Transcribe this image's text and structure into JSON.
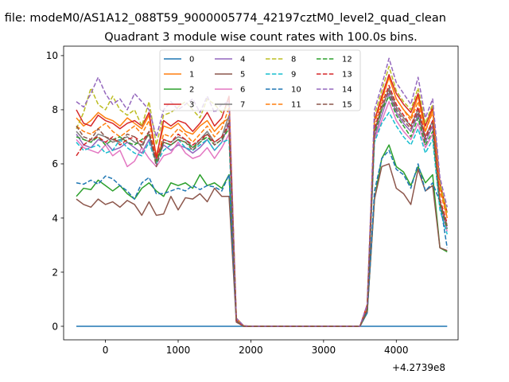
{
  "chart_data": {
    "type": "line",
    "suptitle": "n file: modeM0/AS1A12_088T59_9000005774_42197cztM0_level2_quad_clean",
    "title": "Quadrant 3 module wise count rates with 100.0s bins.",
    "xlabel": "",
    "ylabel": "",
    "x_offset_label": "+4.2739e8",
    "xlim": [
      -575,
      4850
    ],
    "ylim": [
      -0.5,
      10.35
    ],
    "xticks": [
      0,
      1000,
      2000,
      3000,
      4000
    ],
    "xtick_labels": [
      "0",
      "1000",
      "2000",
      "3000",
      "4000"
    ],
    "yticks": [
      0,
      2,
      4,
      6,
      8,
      10
    ],
    "ytick_labels": [
      "0",
      "2",
      "4",
      "6",
      "8",
      "10"
    ],
    "legend_placement": "top-center",
    "legend_columns": 4,
    "x": [
      -400,
      -300,
      -200,
      -100,
      0,
      100,
      200,
      300,
      400,
      500,
      600,
      700,
      800,
      900,
      1000,
      1100,
      1200,
      1300,
      1400,
      1500,
      1600,
      1700,
      1800,
      1900,
      2000,
      2100,
      2200,
      2300,
      2400,
      2500,
      2600,
      2700,
      2800,
      2900,
      3000,
      3100,
      3200,
      3300,
      3400,
      3500,
      3600,
      3700,
      3800,
      3900,
      4000,
      4100,
      4200,
      4300,
      4400,
      4500,
      4600,
      4700
    ],
    "series": [
      {
        "name": "0",
        "color": "#1f77b4",
        "dashed": false,
        "values": [
          0.0,
          0.0,
          0.0,
          0.0,
          0.0,
          0.0,
          0.0,
          0.0,
          0.0,
          0.0,
          0.0,
          0.0,
          0.0,
          0.0,
          0.0,
          0.0,
          0.0,
          0.0,
          0.0,
          0.0,
          0.0,
          0.0,
          0.0,
          0.0,
          0.0,
          0.0,
          0.0,
          0.0,
          0.0,
          0.0,
          0.0,
          0.0,
          0.0,
          0.0,
          0.0,
          0.0,
          0.0,
          0.0,
          0.0,
          0.0,
          0.0,
          0.0,
          0.0,
          0.0,
          0.0,
          0.0,
          0.0,
          0.0,
          0.0,
          0.0,
          0.0,
          0.0
        ]
      },
      {
        "name": "1",
        "color": "#ff7f0e",
        "dashed": false,
        "values": [
          7.7,
          7.4,
          7.6,
          7.9,
          7.7,
          7.6,
          7.4,
          7.7,
          7.5,
          7.3,
          7.8,
          6.3,
          7.4,
          7.3,
          7.5,
          7.2,
          7.1,
          7.4,
          7.6,
          7.2,
          7.5,
          7.7,
          0.3,
          0.02,
          0.0,
          0.0,
          0.0,
          0.0,
          0.0,
          0.0,
          0.0,
          0.0,
          0.0,
          0.0,
          0.0,
          0.0,
          0.0,
          0.0,
          0.0,
          0.0,
          0.7,
          7.6,
          8.4,
          9.2,
          8.4,
          8.0,
          7.7,
          8.5,
          7.2,
          8.0,
          5.2,
          4.0
        ]
      },
      {
        "name": "2",
        "color": "#2ca02c",
        "dashed": false,
        "values": [
          4.8,
          5.1,
          5.05,
          5.4,
          5.2,
          5.0,
          5.2,
          4.9,
          4.7,
          5.1,
          5.3,
          5.0,
          4.8,
          5.3,
          5.2,
          5.3,
          5.1,
          5.6,
          5.2,
          5.3,
          5.1,
          5.6,
          0.2,
          0.0,
          0.0,
          0.0,
          0.0,
          0.0,
          0.0,
          0.0,
          0.0,
          0.0,
          0.0,
          0.0,
          0.0,
          0.0,
          0.0,
          0.0,
          0.0,
          0.0,
          0.5,
          4.7,
          6.2,
          6.7,
          5.9,
          5.7,
          5.2,
          5.9,
          5.3,
          5.6,
          2.9,
          2.75
        ]
      },
      {
        "name": "3",
        "color": "#d62728",
        "dashed": false,
        "values": [
          8.0,
          7.5,
          7.4,
          7.8,
          7.6,
          7.5,
          7.3,
          7.5,
          7.6,
          7.4,
          7.9,
          6.2,
          7.6,
          7.4,
          7.6,
          7.5,
          7.2,
          7.5,
          7.9,
          7.4,
          7.7,
          8.5,
          0.25,
          0.02,
          0.0,
          0.0,
          0.0,
          0.0,
          0.0,
          0.0,
          0.0,
          0.0,
          0.0,
          0.0,
          0.0,
          0.0,
          0.0,
          0.0,
          0.0,
          0.0,
          0.8,
          7.6,
          8.5,
          9.3,
          8.6,
          8.2,
          7.9,
          8.6,
          7.4,
          8.1,
          5.3,
          4.2
        ]
      },
      {
        "name": "4",
        "color": "#9467bd",
        "dashed": false,
        "values": [
          7.1,
          6.7,
          6.6,
          6.9,
          6.8,
          6.5,
          6.6,
          6.8,
          6.6,
          6.4,
          6.9,
          6.1,
          6.7,
          6.5,
          6.7,
          6.6,
          6.4,
          6.6,
          6.9,
          6.5,
          6.8,
          7.5,
          0.25,
          0.0,
          0.0,
          0.0,
          0.0,
          0.0,
          0.0,
          0.0,
          0.0,
          0.0,
          0.0,
          0.0,
          0.0,
          0.0,
          0.0,
          0.0,
          0.0,
          0.0,
          0.6,
          7.0,
          7.8,
          8.6,
          7.9,
          7.5,
          7.2,
          7.8,
          6.8,
          7.4,
          4.5,
          3.6
        ]
      },
      {
        "name": "5",
        "color": "#8c564b",
        "dashed": false,
        "values": [
          4.7,
          4.5,
          4.4,
          4.7,
          4.5,
          4.6,
          4.4,
          4.65,
          4.5,
          4.1,
          4.6,
          4.1,
          4.15,
          4.8,
          4.3,
          4.75,
          4.7,
          4.9,
          4.6,
          5.1,
          4.8,
          4.8,
          0.15,
          0.0,
          0.0,
          0.0,
          0.0,
          0.0,
          0.0,
          0.0,
          0.0,
          0.0,
          0.0,
          0.0,
          0.0,
          0.0,
          0.0,
          0.0,
          0.0,
          0.0,
          0.5,
          4.7,
          5.9,
          6.0,
          5.1,
          4.9,
          4.5,
          5.8,
          5.0,
          5.2,
          2.9,
          2.8
        ]
      },
      {
        "name": "6",
        "color": "#e377c2",
        "dashed": false,
        "values": [
          6.9,
          6.6,
          6.5,
          6.4,
          6.7,
          6.3,
          6.5,
          5.9,
          6.1,
          6.6,
          6.2,
          5.9,
          6.3,
          6.4,
          6.8,
          6.4,
          6.2,
          6.3,
          6.6,
          6.2,
          6.6,
          7.1,
          0.2,
          0.0,
          0.0,
          0.0,
          0.0,
          0.0,
          0.0,
          0.0,
          0.0,
          0.0,
          0.0,
          0.0,
          0.0,
          0.0,
          0.0,
          0.0,
          0.0,
          0.0,
          0.6,
          6.9,
          7.6,
          8.3,
          7.6,
          7.2,
          6.9,
          7.5,
          6.6,
          7.1,
          4.4,
          3.5
        ]
      },
      {
        "name": "7",
        "color": "#7f7f7f",
        "dashed": false,
        "values": [
          7.2,
          6.9,
          6.8,
          7.1,
          7.0,
          6.8,
          6.9,
          7.0,
          6.8,
          6.7,
          7.1,
          6.0,
          6.9,
          6.8,
          7.0,
          6.9,
          6.6,
          6.9,
          7.2,
          6.8,
          7.0,
          7.8,
          0.2,
          0.0,
          0.0,
          0.0,
          0.0,
          0.0,
          0.0,
          0.0,
          0.0,
          0.0,
          0.0,
          0.0,
          0.0,
          0.0,
          0.0,
          0.0,
          0.0,
          0.0,
          0.6,
          7.2,
          8.0,
          8.8,
          8.1,
          7.7,
          7.4,
          8.0,
          7.0,
          7.6,
          4.6,
          3.7
        ]
      },
      {
        "name": "8",
        "color": "#bcbd22",
        "dashed": true,
        "values": [
          7.3,
          7.9,
          8.8,
          8.2,
          8.0,
          8.5,
          8.0,
          7.8,
          8.0,
          7.4,
          8.3,
          6.7,
          7.8,
          7.9,
          8.1,
          8.3,
          8.0,
          7.7,
          8.4,
          8.2,
          7.9,
          8.2,
          0.3,
          0.02,
          0.0,
          0.0,
          0.0,
          0.0,
          0.0,
          0.0,
          0.0,
          0.0,
          0.0,
          0.0,
          0.0,
          0.0,
          0.0,
          0.0,
          0.0,
          0.0,
          0.7,
          7.8,
          8.7,
          9.6,
          8.7,
          8.3,
          8.0,
          8.8,
          7.5,
          8.2,
          5.3,
          4.2
        ]
      },
      {
        "name": "9",
        "color": "#17becf",
        "dashed": true,
        "values": [
          6.8,
          6.5,
          6.6,
          6.7,
          6.4,
          6.5,
          6.9,
          6.6,
          6.4,
          6.3,
          6.8,
          6.0,
          6.5,
          6.7,
          6.9,
          6.6,
          6.5,
          6.7,
          6.9,
          6.5,
          6.8,
          6.9,
          0.2,
          0.0,
          0.0,
          0.0,
          0.0,
          0.0,
          0.0,
          0.0,
          0.0,
          0.0,
          0.0,
          0.0,
          0.0,
          0.0,
          0.0,
          0.0,
          0.0,
          0.0,
          0.6,
          6.8,
          7.5,
          7.9,
          7.4,
          7.0,
          6.7,
          7.3,
          6.4,
          6.9,
          4.3,
          3.4
        ]
      },
      {
        "name": "10",
        "color": "#1f77b4",
        "dashed": true,
        "values": [
          5.3,
          5.25,
          5.4,
          5.25,
          5.55,
          5.45,
          5.2,
          5.0,
          4.7,
          5.3,
          5.5,
          4.9,
          4.9,
          5.0,
          5.1,
          5.0,
          5.2,
          5.05,
          5.2,
          5.15,
          5.0,
          5.6,
          0.2,
          0.0,
          0.0,
          0.0,
          0.0,
          0.0,
          0.0,
          0.0,
          0.0,
          0.0,
          0.0,
          0.0,
          0.0,
          0.0,
          0.0,
          0.0,
          0.0,
          0.0,
          0.5,
          5.0,
          6.2,
          6.5,
          5.8,
          5.6,
          5.1,
          6.0,
          5.0,
          5.3,
          4.6,
          2.9
        ]
      },
      {
        "name": "11",
        "color": "#ff7f0e",
        "dashed": true,
        "values": [
          7.4,
          7.2,
          7.1,
          7.3,
          7.5,
          7.2,
          7.0,
          7.2,
          7.4,
          7.1,
          7.6,
          6.1,
          7.1,
          7.0,
          7.3,
          7.1,
          6.8,
          7.1,
          7.4,
          7.0,
          7.3,
          8.1,
          0.3,
          0.0,
          0.0,
          0.0,
          0.0,
          0.0,
          0.0,
          0.0,
          0.0,
          0.0,
          0.0,
          0.0,
          0.0,
          0.0,
          0.0,
          0.0,
          0.0,
          0.0,
          0.7,
          7.5,
          8.3,
          9.2,
          8.4,
          8.0,
          7.6,
          8.3,
          7.2,
          7.9,
          5.0,
          4.0
        ]
      },
      {
        "name": "12",
        "color": "#2ca02c",
        "dashed": true,
        "values": [
          7.0,
          6.9,
          6.8,
          7.0,
          6.7,
          6.9,
          7.0,
          6.8,
          6.7,
          6.9,
          7.1,
          6.1,
          6.8,
          6.7,
          6.9,
          6.8,
          6.6,
          6.8,
          7.0,
          6.7,
          6.9,
          7.3,
          0.2,
          0.0,
          0.0,
          0.0,
          0.0,
          0.0,
          0.0,
          0.0,
          0.0,
          0.0,
          0.0,
          0.0,
          0.0,
          0.0,
          0.0,
          0.0,
          0.0,
          0.0,
          0.6,
          7.1,
          8.0,
          8.5,
          7.8,
          7.4,
          7.0,
          7.7,
          6.7,
          7.2,
          4.5,
          3.6
        ]
      },
      {
        "name": "13",
        "color": "#d62728",
        "dashed": true,
        "values": [
          6.3,
          6.7,
          6.9,
          7.0,
          6.8,
          7.0,
          6.7,
          6.9,
          7.0,
          6.8,
          7.2,
          6.2,
          6.9,
          6.8,
          7.1,
          6.9,
          6.7,
          6.9,
          7.1,
          6.8,
          7.0,
          7.4,
          0.2,
          0.0,
          0.0,
          0.0,
          0.0,
          0.0,
          0.0,
          0.0,
          0.0,
          0.0,
          0.0,
          0.0,
          0.0,
          0.0,
          0.0,
          0.0,
          0.0,
          0.0,
          0.7,
          7.3,
          8.2,
          8.9,
          8.2,
          7.8,
          7.4,
          8.1,
          7.0,
          7.6,
          4.7,
          3.8
        ]
      },
      {
        "name": "14",
        "color": "#9467bd",
        "dashed": true,
        "values": [
          8.3,
          8.1,
          8.6,
          9.2,
          8.6,
          8.2,
          8.4,
          8.0,
          8.6,
          8.3,
          8.0,
          7.0,
          8.0,
          8.3,
          8.0,
          8.2,
          8.4,
          7.9,
          8.5,
          7.9,
          8.2,
          8.3,
          0.3,
          0.02,
          0.0,
          0.0,
          0.0,
          0.0,
          0.0,
          0.0,
          0.0,
          0.0,
          0.0,
          0.0,
          0.0,
          0.0,
          0.0,
          0.0,
          0.0,
          0.0,
          0.8,
          8.0,
          8.9,
          9.9,
          9.0,
          8.6,
          8.2,
          9.2,
          7.7,
          8.4,
          5.5,
          4.4
        ]
      },
      {
        "name": "15",
        "color": "#8c564b",
        "dashed": true,
        "values": [
          7.4,
          7.0,
          6.9,
          7.3,
          7.0,
          6.9,
          6.8,
          7.1,
          7.0,
          6.6,
          7.2,
          5.9,
          6.8,
          6.7,
          6.9,
          6.8,
          6.5,
          6.8,
          7.1,
          6.7,
          6.9,
          7.6,
          0.2,
          0.0,
          0.0,
          0.0,
          0.0,
          0.0,
          0.0,
          0.0,
          0.0,
          0.0,
          0.0,
          0.0,
          0.0,
          0.0,
          0.0,
          0.0,
          0.0,
          0.0,
          0.6,
          7.2,
          8.1,
          8.7,
          8.0,
          7.6,
          7.3,
          7.9,
          6.9,
          7.5,
          4.6,
          3.7
        ]
      }
    ]
  }
}
